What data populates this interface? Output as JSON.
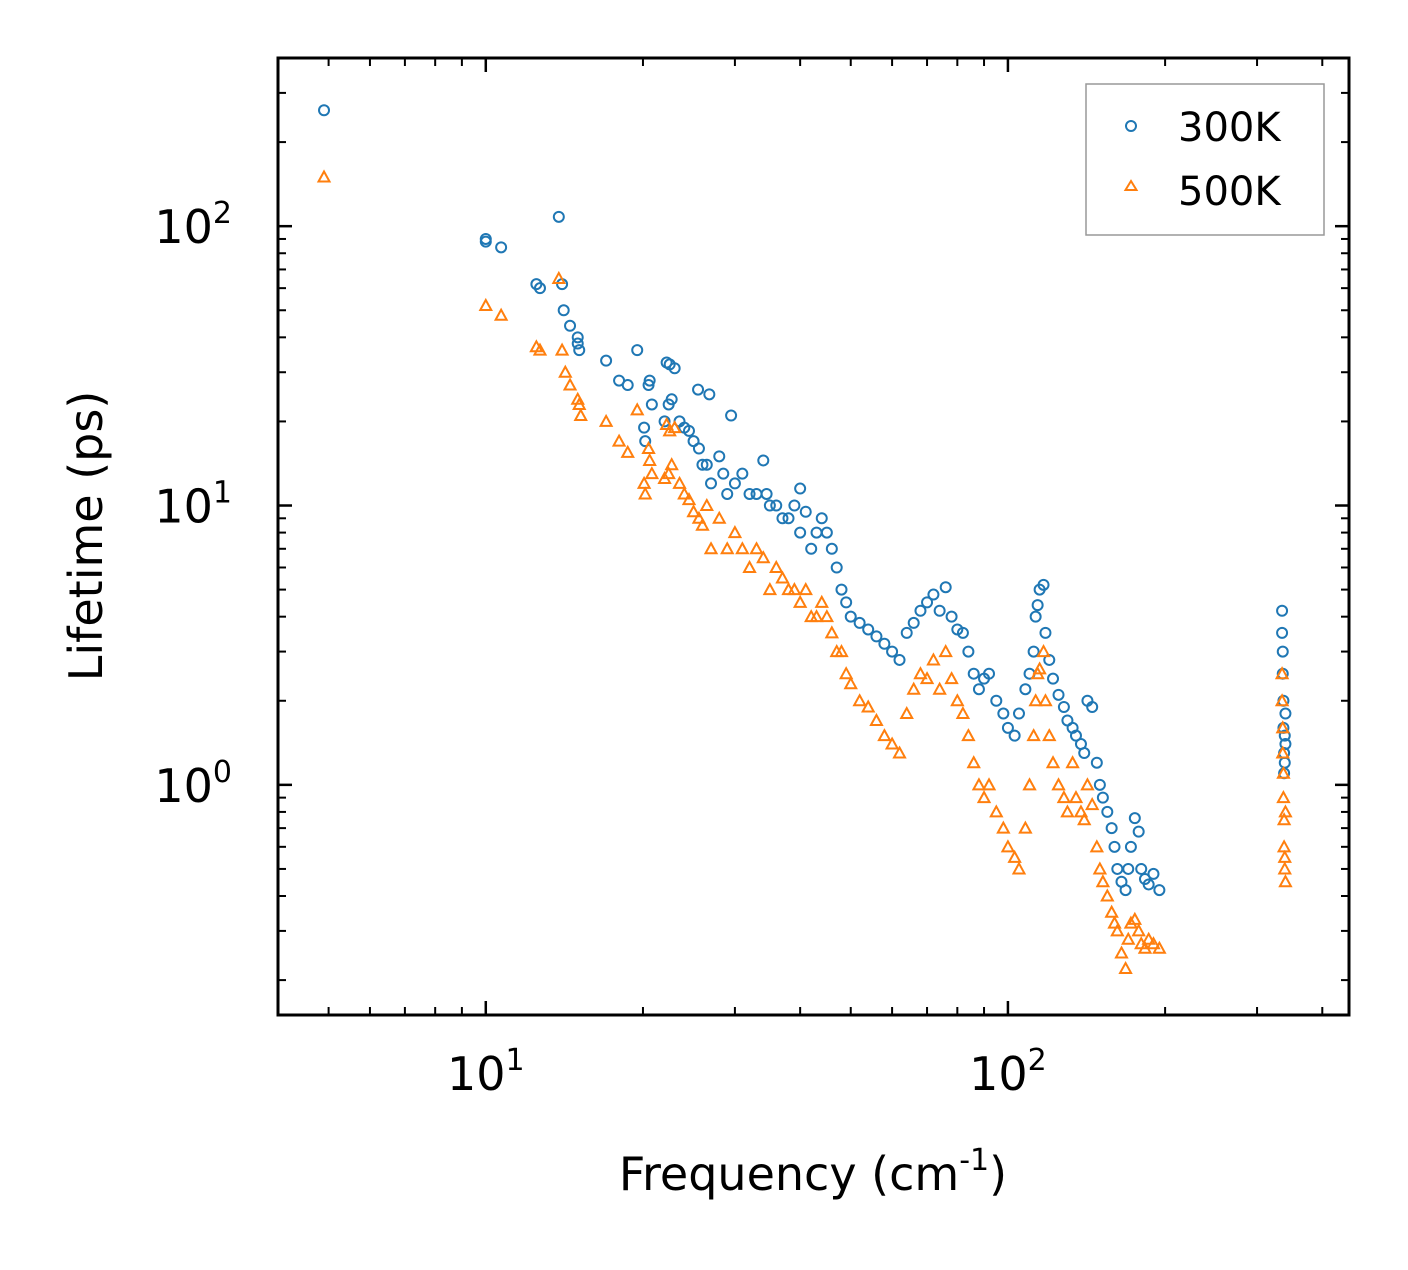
{
  "chart_data": {
    "type": "scatter",
    "title": "",
    "xlabel": "Frequency (cm",
    "xlabel_sup": "-1",
    "xlabel_end": ")",
    "ylabel": "Lifetime (ps)",
    "xscale": "log",
    "yscale": "log",
    "xlim": [
      4,
      450
    ],
    "ylim": [
      0.15,
      400
    ],
    "x_ticks": [
      {
        "value": 10,
        "base": "10",
        "exp": "1"
      },
      {
        "value": 100,
        "base": "10",
        "exp": "2"
      }
    ],
    "y_ticks": [
      {
        "value": 1,
        "base": "10",
        "exp": "0"
      },
      {
        "value": 10,
        "base": "10",
        "exp": "1"
      },
      {
        "value": 100,
        "base": "10",
        "exp": "2"
      }
    ],
    "legend_position": "top-right",
    "series": [
      {
        "name": "300K",
        "marker": "circle",
        "color": "#1f77b4",
        "points": [
          [
            4.9,
            260
          ],
          [
            10,
            88
          ],
          [
            10,
            90
          ],
          [
            10.7,
            84
          ],
          [
            12.5,
            62
          ],
          [
            12.7,
            60
          ],
          [
            13.8,
            108
          ],
          [
            14,
            62
          ],
          [
            14.1,
            50
          ],
          [
            14.5,
            44
          ],
          [
            15,
            40
          ],
          [
            15,
            38
          ],
          [
            15.1,
            36
          ],
          [
            17,
            33
          ],
          [
            18,
            28
          ],
          [
            18.7,
            27
          ],
          [
            19.5,
            36
          ],
          [
            20.5,
            27
          ],
          [
            20.6,
            28
          ],
          [
            20.1,
            19
          ],
          [
            20.2,
            17
          ],
          [
            20.8,
            23
          ],
          [
            22,
            20
          ],
          [
            22.2,
            32.5
          ],
          [
            22.5,
            32
          ],
          [
            22.7,
            24
          ],
          [
            22.4,
            23
          ],
          [
            23,
            31
          ],
          [
            23.5,
            20
          ],
          [
            24,
            19
          ],
          [
            24.5,
            18.5
          ],
          [
            25.5,
            26
          ],
          [
            25,
            17
          ],
          [
            25.6,
            16
          ],
          [
            26,
            14
          ],
          [
            26.5,
            14
          ],
          [
            26.8,
            25
          ],
          [
            27,
            12
          ],
          [
            28,
            15
          ],
          [
            28.5,
            13
          ],
          [
            29.5,
            21
          ],
          [
            29,
            11
          ],
          [
            30,
            12
          ],
          [
            31,
            13
          ],
          [
            32,
            11
          ],
          [
            33,
            11
          ],
          [
            34,
            14.5
          ],
          [
            34.5,
            11
          ],
          [
            35,
            10
          ],
          [
            36,
            10
          ],
          [
            37,
            9
          ],
          [
            38,
            9
          ],
          [
            39,
            10
          ],
          [
            40,
            8
          ],
          [
            40,
            11.5
          ],
          [
            41,
            9.5
          ],
          [
            42,
            7
          ],
          [
            43,
            8
          ],
          [
            44,
            9
          ],
          [
            45,
            8
          ],
          [
            46,
            7
          ],
          [
            47,
            6
          ],
          [
            48,
            5
          ],
          [
            49,
            4.5
          ],
          [
            50,
            4
          ],
          [
            52,
            3.8
          ],
          [
            54,
            3.6
          ],
          [
            56,
            3.4
          ],
          [
            58,
            3.2
          ],
          [
            60,
            3
          ],
          [
            62,
            2.8
          ],
          [
            64,
            3.5
          ],
          [
            66,
            3.8
          ],
          [
            68,
            4.2
          ],
          [
            70,
            4.5
          ],
          [
            72,
            4.8
          ],
          [
            74,
            4.2
          ],
          [
            76,
            5.1
          ],
          [
            78,
            4
          ],
          [
            80,
            3.6
          ],
          [
            82,
            3.5
          ],
          [
            84,
            3
          ],
          [
            86,
            2.5
          ],
          [
            88,
            2.2
          ],
          [
            90,
            2.4
          ],
          [
            92,
            2.5
          ],
          [
            95,
            2
          ],
          [
            98,
            1.8
          ],
          [
            100,
            1.6
          ],
          [
            103,
            1.5
          ],
          [
            105,
            1.8
          ],
          [
            108,
            2.2
          ],
          [
            110,
            2.5
          ],
          [
            112,
            3
          ],
          [
            113,
            4
          ],
          [
            114,
            4.4
          ],
          [
            115,
            5
          ],
          [
            117,
            5.2
          ],
          [
            118,
            3.5
          ],
          [
            120,
            2.8
          ],
          [
            122,
            2.4
          ],
          [
            125,
            2.1
          ],
          [
            128,
            1.9
          ],
          [
            130,
            1.7
          ],
          [
            133,
            1.6
          ],
          [
            135,
            1.5
          ],
          [
            138,
            1.4
          ],
          [
            140,
            1.3
          ],
          [
            142,
            2
          ],
          [
            145,
            1.9
          ],
          [
            148,
            1.2
          ],
          [
            150,
            1
          ],
          [
            152,
            0.9
          ],
          [
            155,
            0.8
          ],
          [
            158,
            0.7
          ],
          [
            160,
            0.6
          ],
          [
            162,
            0.5
          ],
          [
            165,
            0.45
          ],
          [
            168,
            0.42
          ],
          [
            170,
            0.5
          ],
          [
            172,
            0.6
          ],
          [
            175,
            0.76
          ],
          [
            178,
            0.68
          ],
          [
            180,
            0.5
          ],
          [
            183,
            0.46
          ],
          [
            186,
            0.44
          ],
          [
            190,
            0.48
          ],
          [
            195,
            0.42
          ],
          [
            335,
            4.2
          ],
          [
            335,
            3.5
          ],
          [
            336,
            3
          ],
          [
            336,
            2.5
          ],
          [
            337,
            2
          ],
          [
            337,
            1.6
          ],
          [
            338,
            1.3
          ],
          [
            338,
            1.1
          ],
          [
            339,
            1.5
          ],
          [
            339,
            1.2
          ],
          [
            340,
            1.4
          ],
          [
            340,
            1.8
          ]
        ]
      },
      {
        "name": "500K",
        "marker": "triangle",
        "color": "#ff7f0e",
        "points": [
          [
            4.9,
            150
          ],
          [
            10,
            52
          ],
          [
            10.7,
            48
          ],
          [
            12.5,
            37
          ],
          [
            12.7,
            36
          ],
          [
            13.8,
            65
          ],
          [
            14,
            36
          ],
          [
            14.2,
            30
          ],
          [
            14.5,
            27
          ],
          [
            15,
            24
          ],
          [
            15.1,
            23
          ],
          [
            15.2,
            21
          ],
          [
            17,
            20
          ],
          [
            18,
            17
          ],
          [
            18.7,
            15.5
          ],
          [
            19.5,
            22
          ],
          [
            20.5,
            16
          ],
          [
            20.6,
            14.5
          ],
          [
            20.1,
            12
          ],
          [
            20.2,
            11
          ],
          [
            20.8,
            13
          ],
          [
            22,
            12.5
          ],
          [
            22.2,
            19.5
          ],
          [
            22.5,
            18.5
          ],
          [
            22.7,
            14
          ],
          [
            22.4,
            13
          ],
          [
            23,
            19
          ],
          [
            23.5,
            12
          ],
          [
            24,
            11
          ],
          [
            24.5,
            10.5
          ],
          [
            25,
            9.5
          ],
          [
            25.6,
            9
          ],
          [
            26,
            8.5
          ],
          [
            26.5,
            10
          ],
          [
            27,
            7
          ],
          [
            28,
            9
          ],
          [
            29,
            7
          ],
          [
            30,
            8
          ],
          [
            31,
            7
          ],
          [
            32,
            6
          ],
          [
            33,
            7
          ],
          [
            34,
            6.5
          ],
          [
            35,
            5
          ],
          [
            36,
            6
          ],
          [
            37,
            5.5
          ],
          [
            38,
            5
          ],
          [
            39,
            5
          ],
          [
            40,
            4.5
          ],
          [
            41,
            5
          ],
          [
            42,
            4
          ],
          [
            43,
            4
          ],
          [
            44,
            4.5
          ],
          [
            45,
            4
          ],
          [
            46,
            3.5
          ],
          [
            47,
            3
          ],
          [
            48,
            3
          ],
          [
            49,
            2.5
          ],
          [
            50,
            2.3
          ],
          [
            52,
            2
          ],
          [
            54,
            1.9
          ],
          [
            56,
            1.7
          ],
          [
            58,
            1.5
          ],
          [
            60,
            1.4
          ],
          [
            62,
            1.3
          ],
          [
            64,
            1.8
          ],
          [
            66,
            2.2
          ],
          [
            68,
            2.5
          ],
          [
            70,
            2.4
          ],
          [
            72,
            2.8
          ],
          [
            74,
            2.2
          ],
          [
            76,
            3
          ],
          [
            78,
            2.4
          ],
          [
            80,
            2
          ],
          [
            82,
            1.8
          ],
          [
            84,
            1.5
          ],
          [
            86,
            1.2
          ],
          [
            88,
            1
          ],
          [
            90,
            0.9
          ],
          [
            92,
            1
          ],
          [
            95,
            0.8
          ],
          [
            98,
            0.7
          ],
          [
            100,
            0.6
          ],
          [
            103,
            0.55
          ],
          [
            105,
            0.5
          ],
          [
            108,
            0.7
          ],
          [
            110,
            1
          ],
          [
            112,
            1.5
          ],
          [
            113,
            2
          ],
          [
            114,
            2.5
          ],
          [
            115,
            2.6
          ],
          [
            117,
            3
          ],
          [
            118,
            2
          ],
          [
            120,
            1.5
          ],
          [
            122,
            1.2
          ],
          [
            125,
            1
          ],
          [
            128,
            0.9
          ],
          [
            130,
            0.8
          ],
          [
            133,
            1.2
          ],
          [
            135,
            0.9
          ],
          [
            138,
            0.8
          ],
          [
            140,
            0.75
          ],
          [
            142,
            1
          ],
          [
            145,
            0.85
          ],
          [
            148,
            0.6
          ],
          [
            150,
            0.5
          ],
          [
            152,
            0.45
          ],
          [
            155,
            0.4
          ],
          [
            158,
            0.35
          ],
          [
            160,
            0.32
          ],
          [
            162,
            0.3
          ],
          [
            165,
            0.25
          ],
          [
            168,
            0.22
          ],
          [
            170,
            0.28
          ],
          [
            172,
            0.32
          ],
          [
            175,
            0.33
          ],
          [
            178,
            0.3
          ],
          [
            180,
            0.27
          ],
          [
            183,
            0.26
          ],
          [
            186,
            0.28
          ],
          [
            190,
            0.27
          ],
          [
            195,
            0.26
          ],
          [
            335,
            2.5
          ],
          [
            335,
            2
          ],
          [
            336,
            1.6
          ],
          [
            336,
            1.3
          ],
          [
            337,
            1.1
          ],
          [
            337,
            0.9
          ],
          [
            338,
            0.75
          ],
          [
            338,
            0.6
          ],
          [
            339,
            0.55
          ],
          [
            339,
            0.5
          ],
          [
            340,
            0.45
          ],
          [
            340,
            0.8
          ]
        ]
      }
    ]
  }
}
